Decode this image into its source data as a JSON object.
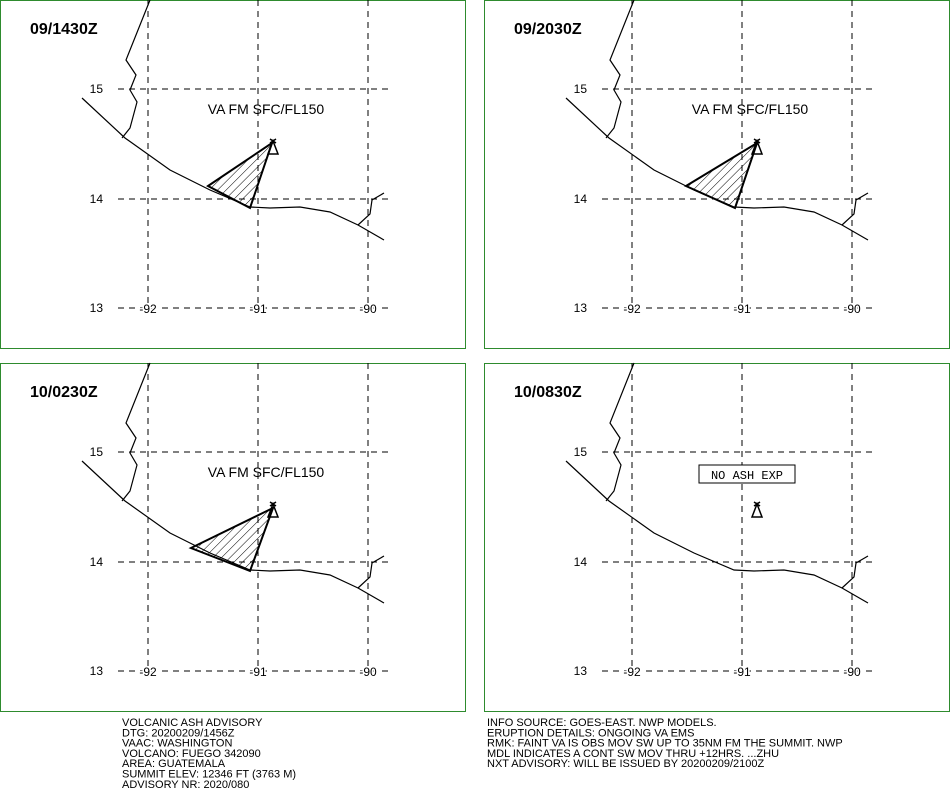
{
  "panels": [
    {
      "time": "09/1430Z",
      "label": "VA FM SFC/FL150",
      "ash": true
    },
    {
      "time": "09/2030Z",
      "label": "VA FM SFC/FL150",
      "ash": true
    },
    {
      "time": "10/0230Z",
      "label": "VA FM SFC/FL150",
      "ash": true
    },
    {
      "time": "10/0830Z",
      "label": "NO ASH EXP",
      "ash": false
    }
  ],
  "grid": {
    "lat_labels": [
      "15",
      "14",
      "13"
    ],
    "lon_labels": [
      "-92",
      "-91",
      "-90"
    ]
  },
  "advisory_left": [
    "VOLCANIC ASH ADVISORY",
    "DTG: 20200209/1456Z",
    "VAAC: WASHINGTON",
    "VOLCANO: FUEGO 342090",
    "AREA: GUATEMALA",
    "SUMMIT ELEV: 12346 FT (3763 M)",
    "ADVISORY NR: 2020/080"
  ],
  "advisory_right": [
    "INFO SOURCE: GOES-EAST. NWP MODELS.",
    "ERUPTION DETAILS: ONGOING VA EMS",
    "RMK: FAINT VA IS OBS MOV SW UP TO 35NM FM THE SUMMIT. NWP",
    "MDL INDICATES A CONT SW MOV THRU +12HRS. ...ZHU",
    "NXT ADVISORY: WILL BE ISSUED BY 20200209/2100Z"
  ]
}
